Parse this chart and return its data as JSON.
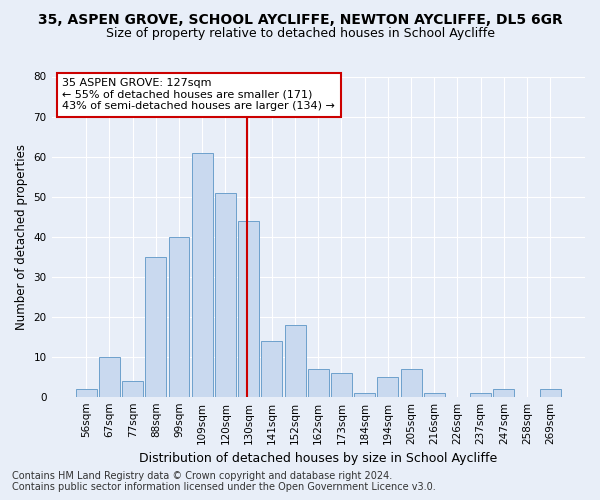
{
  "title": "35, ASPEN GROVE, SCHOOL AYCLIFFE, NEWTON AYCLIFFE, DL5 6GR",
  "subtitle": "Size of property relative to detached houses in School Aycliffe",
  "xlabel": "Distribution of detached houses by size in School Aycliffe",
  "ylabel": "Number of detached properties",
  "bin_labels": [
    "56sqm",
    "67sqm",
    "77sqm",
    "88sqm",
    "99sqm",
    "109sqm",
    "120sqm",
    "130sqm",
    "141sqm",
    "152sqm",
    "162sqm",
    "173sqm",
    "184sqm",
    "194sqm",
    "205sqm",
    "216sqm",
    "226sqm",
    "237sqm",
    "247sqm",
    "258sqm",
    "269sqm"
  ],
  "bar_heights": [
    2,
    10,
    4,
    35,
    40,
    61,
    51,
    44,
    14,
    18,
    7,
    6,
    1,
    5,
    7,
    1,
    0,
    1,
    2,
    0,
    2
  ],
  "bar_color": "#c9d9ef",
  "bar_edgecolor": "#6da0cc",
  "marker_bin_index": 7,
  "marker_color": "#cc0000",
  "annotation_line1": "35 ASPEN GROVE: 127sqm",
  "annotation_line2": "← 55% of detached houses are smaller (171)",
  "annotation_line3": "43% of semi-detached houses are larger (134) →",
  "annotation_box_facecolor": "#ffffff",
  "annotation_box_edgecolor": "#cc0000",
  "ylim": [
    0,
    80
  ],
  "yticks": [
    0,
    10,
    20,
    30,
    40,
    50,
    60,
    70,
    80
  ],
  "background_color": "#e8eef8",
  "plot_background_color": "#e8eef8",
  "footer_line1": "Contains HM Land Registry data © Crown copyright and database right 2024.",
  "footer_line2": "Contains public sector information licensed under the Open Government Licence v3.0.",
  "title_fontsize": 10,
  "subtitle_fontsize": 9,
  "xlabel_fontsize": 9,
  "ylabel_fontsize": 8.5,
  "tick_fontsize": 7.5,
  "annotation_fontsize": 8,
  "footer_fontsize": 7
}
